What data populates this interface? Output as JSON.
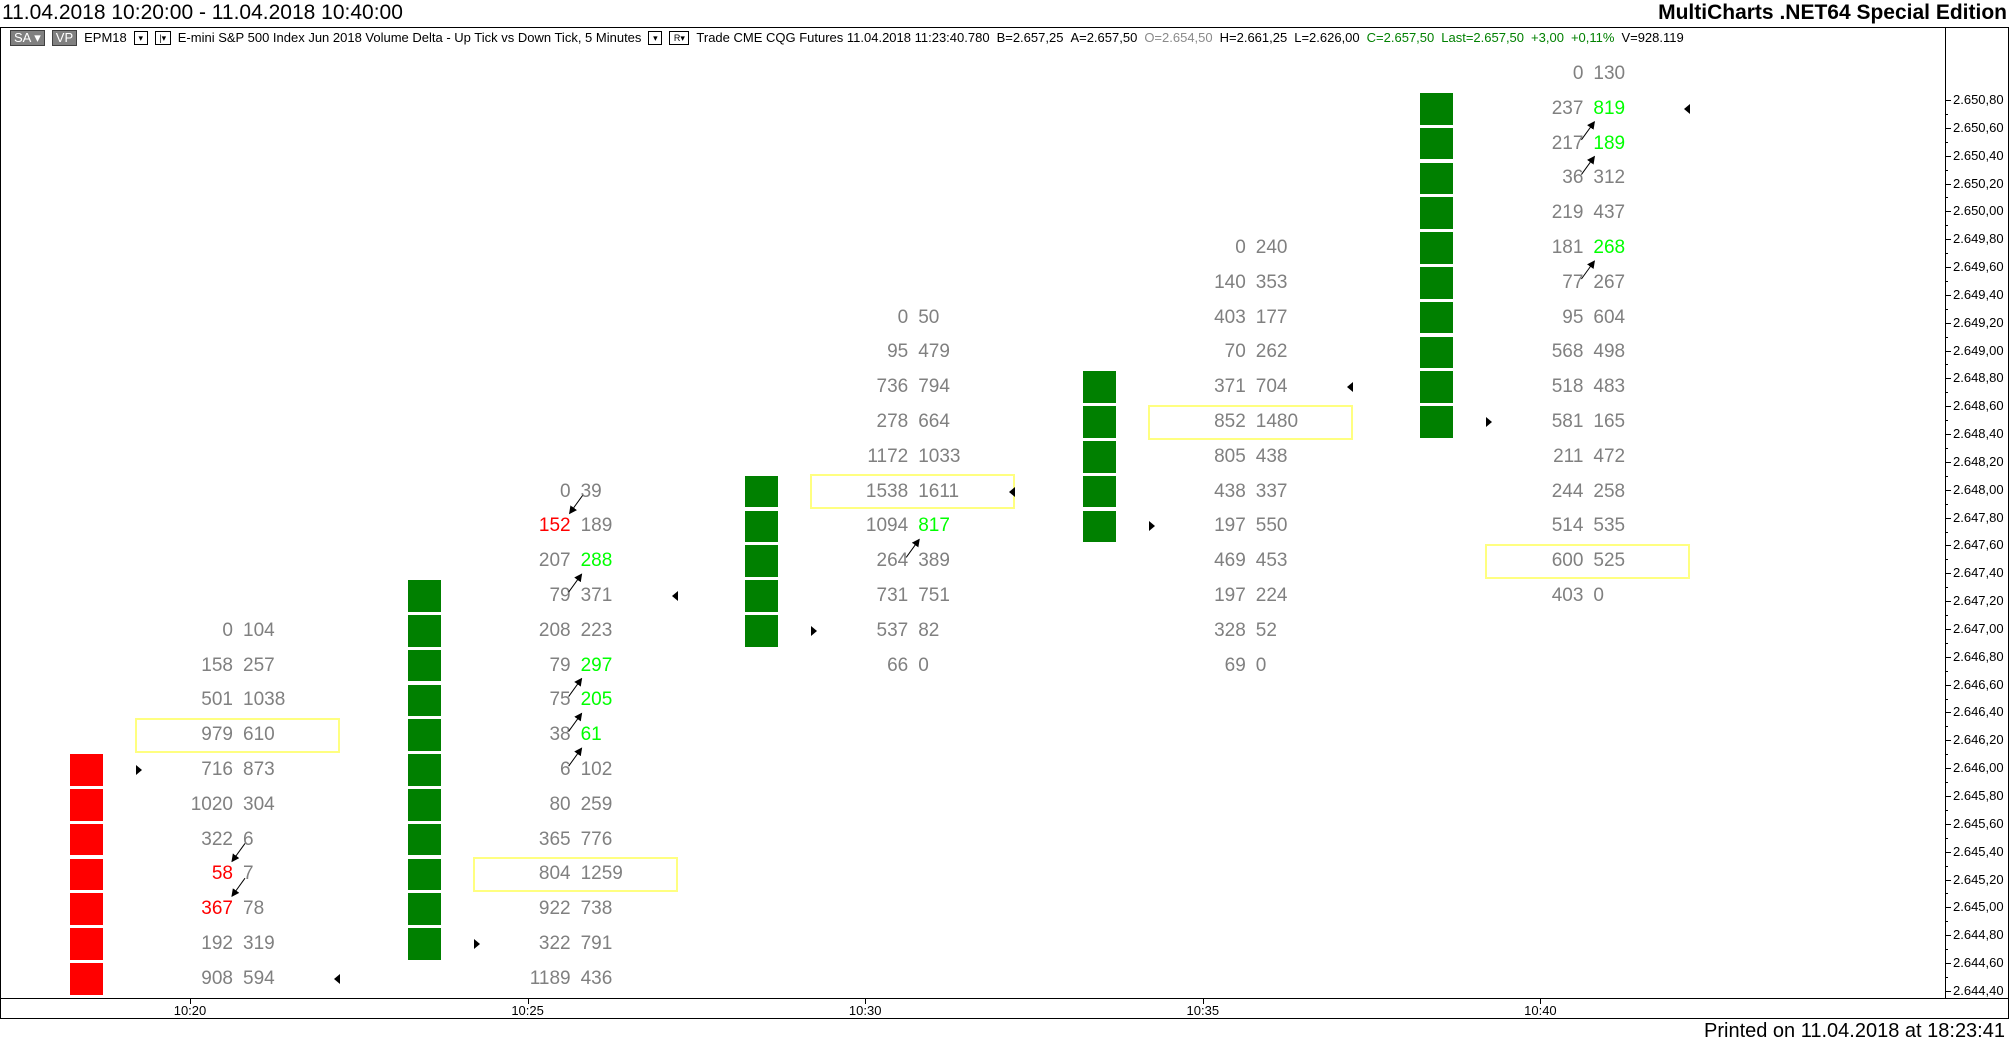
{
  "window": {
    "title_left": "11.04.2018 10:20:00 - 11.04.2018 10:40:00",
    "title_right": "MultiCharts .NET64 Special Edition",
    "printed": "Printed on 11.04.2018 at 18:23:41"
  },
  "header": {
    "sa_button": "SA",
    "sa_dropdown": "▾",
    "vp_button": "VP",
    "symbol": "EPM18",
    "symbol_dropdown": "▾",
    "bar_button": "|▾",
    "description": "E-mini S&P 500 Index Jun 2018  Volume Delta - Up Tick vs Down Tick, 5 Minutes",
    "description_dropdown": "▾",
    "r_button": "R▾",
    "feed": "Trade  CME  CQG  Futures  11.04.2018  11:23:40.780",
    "bid": "B=2.657,25",
    "ask": "A=2.657,50",
    "open": "O=2.654,50",
    "high": "H=2.661,25",
    "low": "L=2.626,00",
    "close": "C=2.657,50",
    "last": "Last=2.657,50",
    "change": "+3,00",
    "change_pct": "+0,11%",
    "volume": "V=928.119"
  },
  "colors": {
    "down_box": "#ff0000",
    "up_box": "#008000",
    "bid_imbalance": "#ff0000",
    "ask_imbalance": "#00ff00",
    "poc_border": "#ffff80",
    "volume_text": "#808080"
  },
  "price_axis": [
    "2.650,80",
    "2.650,60",
    "2.650,40",
    "2.650,20",
    "2.650,00",
    "2.649,80",
    "2.649,60",
    "2.649,40",
    "2.649,20",
    "2.649,00",
    "2.648,80",
    "2.648,60",
    "2.648,40",
    "2.648,20",
    "2.648,00",
    "2.647,80",
    "2.647,60",
    "2.647,40",
    "2.647,20",
    "2.647,00",
    "2.646,80",
    "2.646,60",
    "2.646,40",
    "2.646,20",
    "2.646,00",
    "2.645,80",
    "2.645,60",
    "2.645,40",
    "2.645,20",
    "2.645,00",
    "2.644,80",
    "2.644,60",
    "2.644,40"
  ],
  "time_axis": [
    "10:20",
    "10:25",
    "10:30",
    "10:35",
    "10:40"
  ],
  "bars": [
    {
      "time": "10:20",
      "open": 2646.0,
      "close": 2644.5,
      "direction": "down",
      "poc": 2646.25,
      "rows": [
        [
          2647.0,
          "0",
          "104"
        ],
        [
          2646.75,
          "158",
          "257"
        ],
        [
          2646.5,
          "501",
          "1038"
        ],
        [
          2646.25,
          "979",
          "610"
        ],
        [
          2646.0,
          "716",
          "873"
        ],
        [
          2645.75,
          "1020",
          "304"
        ],
        [
          2645.5,
          "322",
          "6"
        ],
        [
          2645.25,
          "58",
          "7",
          "bid"
        ],
        [
          2645.0,
          "367",
          "78",
          "bid"
        ],
        [
          2644.75,
          "192",
          "319"
        ],
        [
          2644.5,
          "908",
          "594"
        ]
      ]
    },
    {
      "time": "10:25",
      "open": 2644.75,
      "close": 2647.25,
      "direction": "up",
      "poc": 2645.25,
      "rows": [
        [
          2648.0,
          "0",
          "39"
        ],
        [
          2647.75,
          "152",
          "189",
          "bid"
        ],
        [
          2647.5,
          "207",
          "288",
          "ask"
        ],
        [
          2647.25,
          "79",
          "371"
        ],
        [
          2647.0,
          "208",
          "223"
        ],
        [
          2646.75,
          "79",
          "297",
          "ask"
        ],
        [
          2646.5,
          "75",
          "205",
          "ask"
        ],
        [
          2646.25,
          "38",
          "61",
          "ask"
        ],
        [
          2646.0,
          "6",
          "102"
        ],
        [
          2645.75,
          "80",
          "259"
        ],
        [
          2645.5,
          "365",
          "776"
        ],
        [
          2645.25,
          "804",
          "1259"
        ],
        [
          2645.0,
          "922",
          "738"
        ],
        [
          2644.75,
          "322",
          "791"
        ],
        [
          2644.5,
          "1189",
          "436"
        ]
      ]
    },
    {
      "time": "10:30",
      "open": 2647.0,
      "close": 2648.0,
      "direction": "up",
      "poc": 2648.0,
      "rows": [
        [
          2649.25,
          "0",
          "50"
        ],
        [
          2649.0,
          "95",
          "479"
        ],
        [
          2648.75,
          "736",
          "794"
        ],
        [
          2648.5,
          "278",
          "664"
        ],
        [
          2648.25,
          "1172",
          "1033"
        ],
        [
          2648.0,
          "1538",
          "1611"
        ],
        [
          2647.75,
          "1094",
          "817",
          "ask"
        ],
        [
          2647.5,
          "264",
          "389"
        ],
        [
          2647.25,
          "731",
          "751"
        ],
        [
          2647.0,
          "537",
          "82"
        ],
        [
          2646.75,
          "66",
          "0"
        ]
      ]
    },
    {
      "time": "10:35",
      "open": 2647.75,
      "close": 2648.75,
      "direction": "up",
      "poc": 2648.5,
      "rows": [
        [
          2649.75,
          "0",
          "240"
        ],
        [
          2649.5,
          "140",
          "353"
        ],
        [
          2649.25,
          "403",
          "177"
        ],
        [
          2649.0,
          "70",
          "262"
        ],
        [
          2648.75,
          "371",
          "704"
        ],
        [
          2648.5,
          "852",
          "1480"
        ],
        [
          2648.25,
          "805",
          "438"
        ],
        [
          2648.0,
          "438",
          "337"
        ],
        [
          2647.75,
          "197",
          "550"
        ],
        [
          2647.5,
          "469",
          "453"
        ],
        [
          2647.25,
          "197",
          "224"
        ],
        [
          2647.0,
          "328",
          "52"
        ],
        [
          2646.75,
          "69",
          "0"
        ]
      ]
    },
    {
      "time": "10:40",
      "open": 2648.5,
      "close": 2650.75,
      "direction": "up",
      "poc": 2647.5,
      "rows": [
        [
          2651.0,
          "0",
          "130"
        ],
        [
          2650.75,
          "237",
          "819",
          "ask"
        ],
        [
          2650.5,
          "217",
          "189",
          "ask"
        ],
        [
          2650.25,
          "36",
          "312"
        ],
        [
          2650.0,
          "219",
          "437"
        ],
        [
          2649.75,
          "181",
          "268",
          "ask"
        ],
        [
          2649.5,
          "77",
          "267"
        ],
        [
          2649.25,
          "95",
          "604"
        ],
        [
          2649.0,
          "568",
          "498"
        ],
        [
          2648.75,
          "518",
          "483"
        ],
        [
          2648.5,
          "581",
          "165"
        ],
        [
          2648.25,
          "211",
          "472"
        ],
        [
          2648.0,
          "244",
          "258"
        ],
        [
          2647.75,
          "514",
          "535"
        ],
        [
          2647.5,
          "600",
          "525"
        ],
        [
          2647.25,
          "403",
          "0"
        ]
      ]
    }
  ]
}
